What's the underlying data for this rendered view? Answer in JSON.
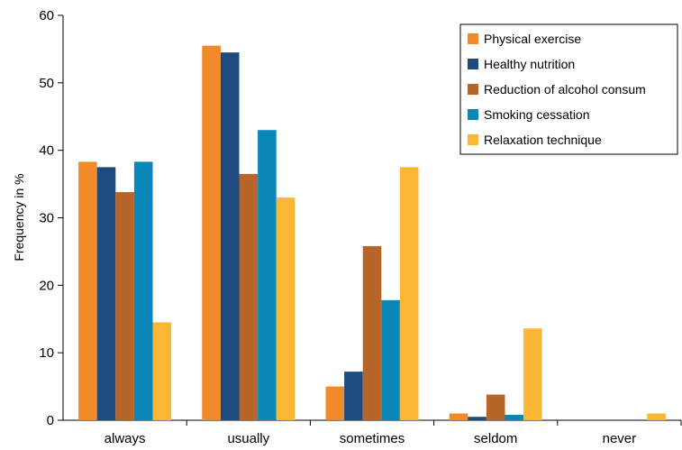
{
  "chart_data": {
    "type": "bar",
    "title": "",
    "xlabel": "",
    "ylabel": "Frequency in %",
    "ylim": [
      0,
      60
    ],
    "yticks": [
      0,
      10,
      20,
      30,
      40,
      50,
      60
    ],
    "grid": false,
    "legend_position": "top-right",
    "categories": [
      "always",
      "usually",
      "sometimes",
      "seldom",
      "never"
    ],
    "series": [
      {
        "name": "Physical exercise",
        "color": "#f28a2a",
        "values": [
          38.3,
          55.5,
          5.0,
          1.0,
          0.0
        ]
      },
      {
        "name": "Healthy nutrition",
        "color": "#1f4a7e",
        "values": [
          37.5,
          54.5,
          7.2,
          0.5,
          0.0
        ]
      },
      {
        "name": "Reduction of alcohol consum",
        "color": "#b8652a",
        "values": [
          33.8,
          36.5,
          25.8,
          3.8,
          0.0
        ]
      },
      {
        "name": "Smoking cessation",
        "color": "#0a86b8",
        "values": [
          38.3,
          43.0,
          17.8,
          0.8,
          0.0
        ]
      },
      {
        "name": "Relaxation technique",
        "color": "#fbb634",
        "values": [
          14.5,
          33.0,
          37.5,
          13.6,
          1.0
        ]
      }
    ]
  }
}
